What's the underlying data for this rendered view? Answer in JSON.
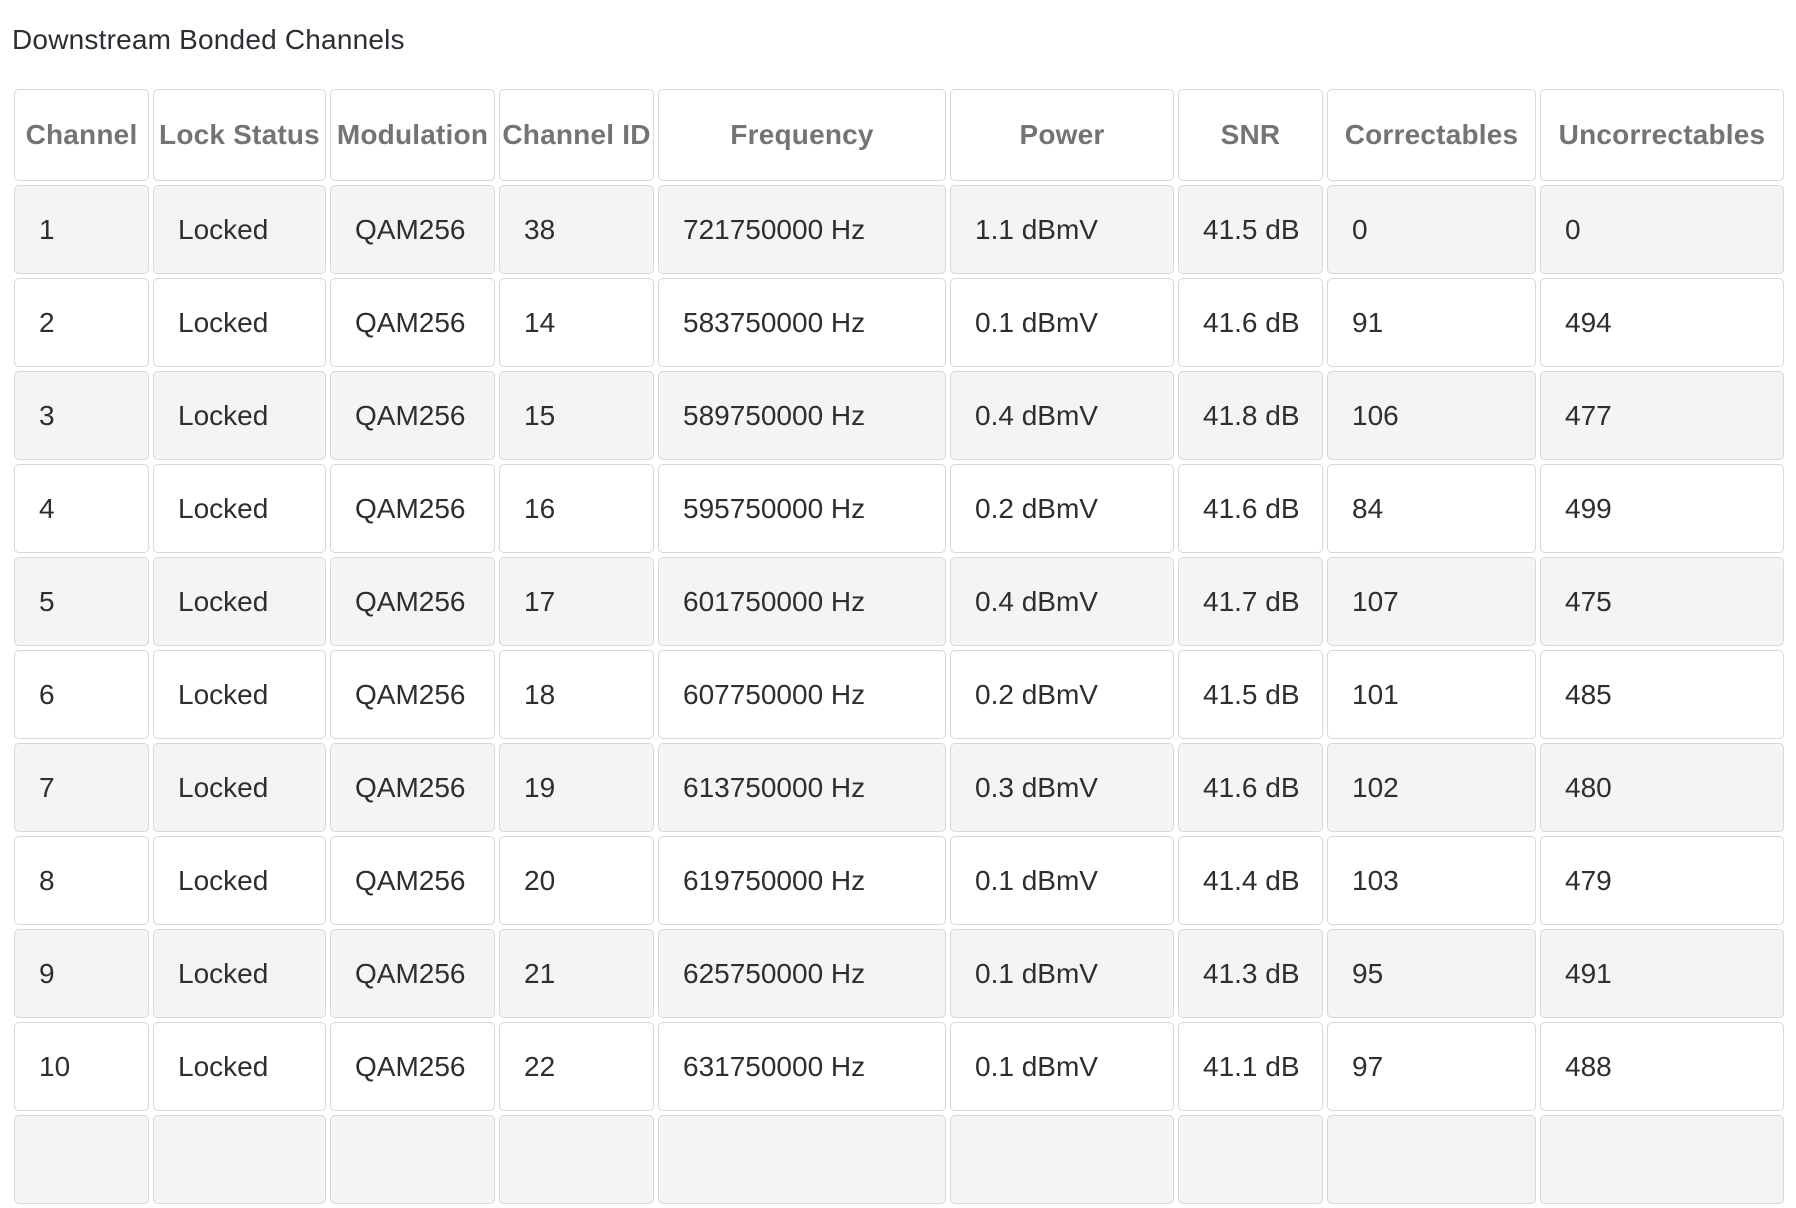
{
  "page": {
    "title": "Downstream Bonded Channels"
  },
  "colors": {
    "title_text": "#2d2d35",
    "header_text": "#747474",
    "body_text": "#2e2e2e",
    "cell_border": "#d8d8d8",
    "row_stripe": "#f4f4f4",
    "row_plain": "#ffffff"
  },
  "table": {
    "columns": [
      "Channel",
      "Lock Status",
      "Modulation",
      "Channel ID",
      "Frequency",
      "Power",
      "SNR",
      "Correctables",
      "Uncorrectables"
    ],
    "rows": [
      [
        "1",
        "Locked",
        "QAM256",
        "38",
        "721750000 Hz",
        "1.1 dBmV",
        "41.5 dB",
        "0",
        "0"
      ],
      [
        "2",
        "Locked",
        "QAM256",
        "14",
        "583750000 Hz",
        "0.1 dBmV",
        "41.6 dB",
        "91",
        "494"
      ],
      [
        "3",
        "Locked",
        "QAM256",
        "15",
        "589750000 Hz",
        "0.4 dBmV",
        "41.8 dB",
        "106",
        "477"
      ],
      [
        "4",
        "Locked",
        "QAM256",
        "16",
        "595750000 Hz",
        "0.2 dBmV",
        "41.6 dB",
        "84",
        "499"
      ],
      [
        "5",
        "Locked",
        "QAM256",
        "17",
        "601750000 Hz",
        "0.4 dBmV",
        "41.7 dB",
        "107",
        "475"
      ],
      [
        "6",
        "Locked",
        "QAM256",
        "18",
        "607750000 Hz",
        "0.2 dBmV",
        "41.5 dB",
        "101",
        "485"
      ],
      [
        "7",
        "Locked",
        "QAM256",
        "19",
        "613750000 Hz",
        "0.3 dBmV",
        "41.6 dB",
        "102",
        "480"
      ],
      [
        "8",
        "Locked",
        "QAM256",
        "20",
        "619750000 Hz",
        "0.1 dBmV",
        "41.4 dB",
        "103",
        "479"
      ],
      [
        "9",
        "Locked",
        "QAM256",
        "21",
        "625750000 Hz",
        "0.1 dBmV",
        "41.3 dB",
        "95",
        "491"
      ],
      [
        "10",
        "Locked",
        "QAM256",
        "22",
        "631750000 Hz",
        "0.1 dBmV",
        "41.1 dB",
        "97",
        "488"
      ],
      [
        "",
        "",
        "",
        "",
        "",
        "",
        "",
        "",
        ""
      ]
    ]
  }
}
